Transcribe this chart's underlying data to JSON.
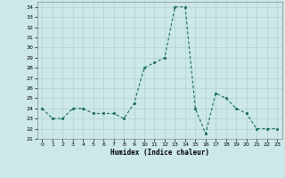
{
  "x": [
    0,
    1,
    2,
    3,
    4,
    5,
    6,
    7,
    8,
    9,
    10,
    11,
    12,
    13,
    14,
    15,
    16,
    17,
    18,
    19,
    20,
    21,
    22,
    23
  ],
  "y": [
    24,
    23,
    23,
    24,
    24,
    23.5,
    23.5,
    23.5,
    23,
    24.5,
    28,
    28.5,
    29,
    34,
    34,
    24,
    21.5,
    25.5,
    25,
    24,
    23.5,
    22,
    22,
    22
  ],
  "line_color": "#1a6b5a",
  "marker_color": "#1a6b5a",
  "bg_color": "#cce8e8",
  "grid_color": "#b0d0d0",
  "xlabel": "Humidex (Indice chaleur)",
  "ylim": [
    21,
    34.5
  ],
  "xlim": [
    -0.5,
    23.5
  ],
  "yticks": [
    21,
    22,
    23,
    24,
    25,
    26,
    27,
    28,
    29,
    30,
    31,
    32,
    33,
    34
  ],
  "xticks": [
    0,
    1,
    2,
    3,
    4,
    5,
    6,
    7,
    8,
    9,
    10,
    11,
    12,
    13,
    14,
    15,
    16,
    17,
    18,
    19,
    20,
    21,
    22,
    23
  ]
}
